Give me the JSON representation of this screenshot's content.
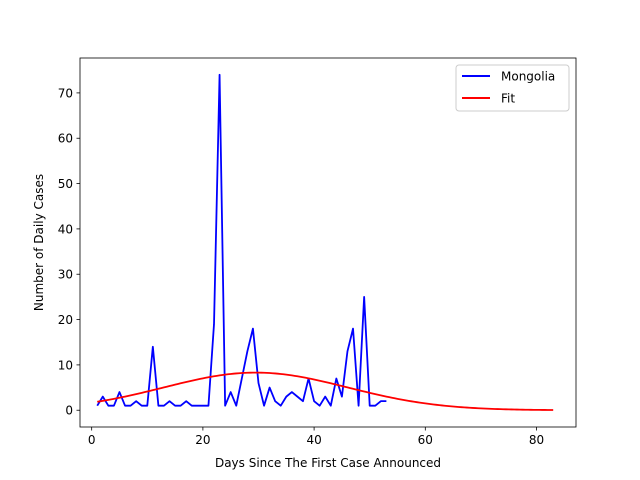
{
  "chart_data": {
    "type": "line",
    "title": "",
    "xlabel": "Days Since The First Case Announced",
    "ylabel": "Number of Daily Cases",
    "xlim": [
      -2.1,
      87.1
    ],
    "ylim": [
      -3.7,
      77.7
    ],
    "xticks": [
      0,
      20,
      40,
      60,
      80
    ],
    "yticks": [
      0,
      10,
      20,
      30,
      40,
      50,
      60,
      70
    ],
    "legend_position": "top-right",
    "series": [
      {
        "name": "Mongolia",
        "color": "#0000ff",
        "x": [
          1,
          2,
          3,
          4,
          5,
          6,
          7,
          8,
          9,
          10,
          11,
          12,
          13,
          14,
          15,
          16,
          17,
          18,
          19,
          20,
          21,
          22,
          23,
          24,
          25,
          26,
          27,
          28,
          29,
          30,
          31,
          32,
          33,
          34,
          35,
          36,
          37,
          38,
          39,
          40,
          41,
          42,
          43,
          44,
          45,
          46,
          47,
          48,
          49,
          50,
          51,
          52,
          53
        ],
        "y": [
          1,
          3,
          1,
          1,
          4,
          1,
          1,
          2,
          1,
          1,
          14,
          1,
          1,
          2,
          1,
          1,
          2,
          1,
          1,
          1,
          1,
          19,
          74,
          1,
          4,
          1,
          7,
          13,
          18,
          6,
          1,
          5,
          2,
          1,
          3,
          4,
          3,
          2,
          7,
          2,
          1,
          3,
          1,
          7,
          3,
          13,
          18,
          1,
          25,
          1,
          1,
          2,
          2
        ]
      },
      {
        "name": "Fit",
        "color": "#ff0000",
        "model": "gaussian",
        "amplitude": 8.3,
        "center": 29.5,
        "sigma": 16.5,
        "x_range": [
          1,
          83
        ]
      }
    ]
  }
}
